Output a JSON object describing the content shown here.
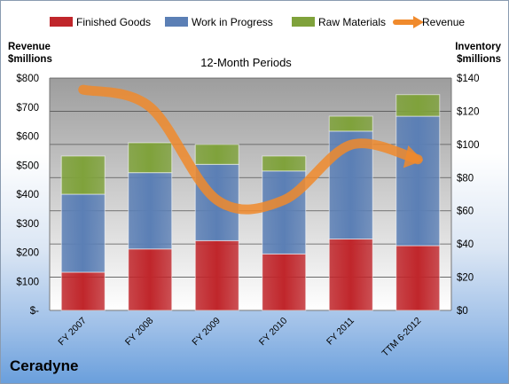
{
  "chart_data": {
    "type": "bar",
    "stacked": true,
    "title": "12-Month Periods",
    "company": "Ceradyne",
    "categories": [
      "FY 2007",
      "FY 2008",
      "FY 2009",
      "FY 2010",
      "FY 2011",
      "TTM 6-2012"
    ],
    "series": [
      {
        "name": "Finished Goods",
        "axis": "right",
        "color": "#c0262b",
        "values": [
          23,
          37,
          42,
          34,
          43,
          39
        ]
      },
      {
        "name": "Work in Progress",
        "axis": "right",
        "color": "#5b7fb5",
        "values": [
          47,
          46,
          46,
          50,
          65,
          78
        ]
      },
      {
        "name": "Raw Materials",
        "axis": "right",
        "color": "#7fa23b",
        "values": [
          23,
          18,
          12,
          9,
          9,
          13
        ]
      },
      {
        "name": "Revenue",
        "axis": "left",
        "type": "line",
        "color": "#f08a2c",
        "values": [
          760,
          700,
          380,
          380,
          570,
          520
        ]
      }
    ],
    "ylabel_left": [
      "Revenue",
      "$millions"
    ],
    "ylabel_right": [
      "Inventory",
      "$millions"
    ],
    "ylim_left": [
      0,
      800
    ],
    "ylim_right": [
      0,
      140
    ],
    "yticks_left": [
      "$-",
      "$100",
      "$200",
      "$300",
      "$400",
      "$500",
      "$600",
      "$700",
      "$800"
    ],
    "yticks_right": [
      "$0",
      "$20",
      "$40",
      "$60",
      "$80",
      "$100",
      "$120",
      "$140"
    ],
    "legend_position": "top",
    "grid": true
  }
}
